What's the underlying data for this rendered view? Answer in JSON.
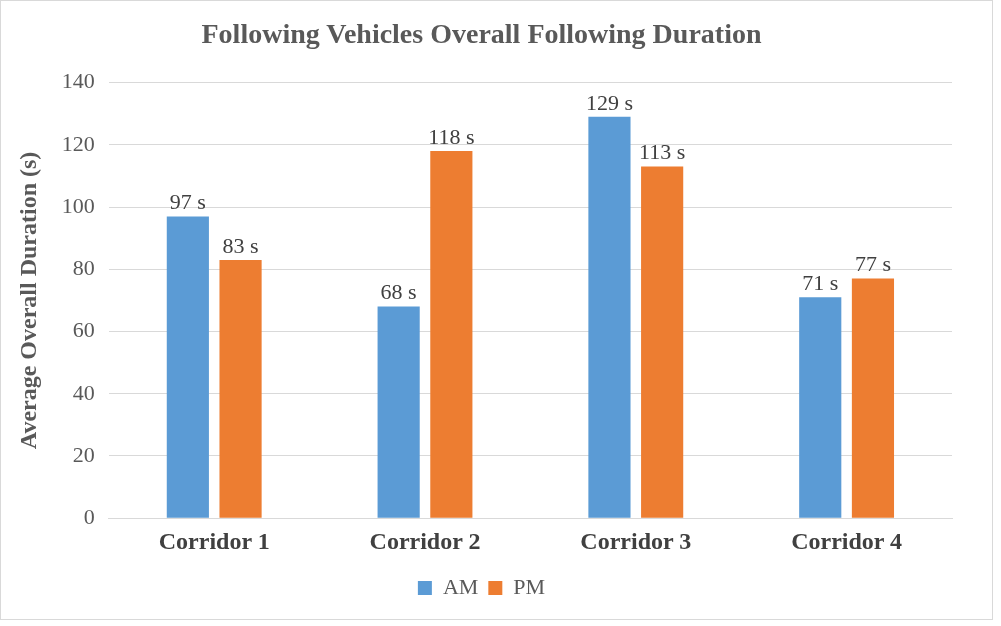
{
  "chart_data": {
    "type": "bar",
    "title": "Following Vehicles Overall Following Duration",
    "ylabel": "Average Overall Duration (s)",
    "categories": [
      "Corridor 1",
      "Corridor 2",
      "Corridor 3",
      "Corridor 4"
    ],
    "series": [
      {
        "name": "AM",
        "color": "#5b9bd5",
        "values": [
          97,
          68,
          129,
          71
        ],
        "value_labels": [
          "97 s",
          "68 s",
          "129 s",
          "71 s"
        ]
      },
      {
        "name": "PM",
        "color": "#ed7d31",
        "values": [
          83,
          118,
          113,
          77
        ],
        "value_labels": [
          "83 s",
          "118 s",
          "113 s",
          "77 s"
        ]
      }
    ],
    "ylim": [
      0,
      140
    ],
    "yticks": [
      0,
      20,
      40,
      60,
      80,
      100,
      120,
      140
    ],
    "grid": "y",
    "legend": "bottom"
  }
}
